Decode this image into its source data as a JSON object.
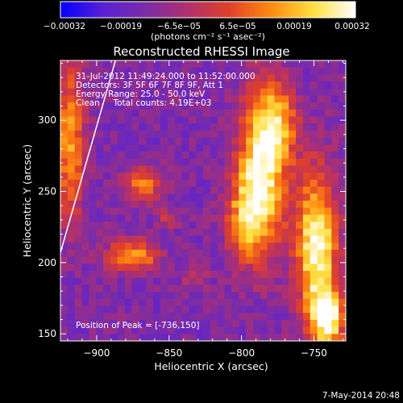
{
  "chart_data": {
    "type": "heatmap",
    "title": "Reconstructed RHESSI Image",
    "xlabel": "Heliocentric X (arcsec)",
    "ylabel": "Heliocentric Y (arcsec)",
    "xlim": [
      -925,
      -728
    ],
    "ylim": [
      145,
      342
    ],
    "x_ticks": [
      -900,
      -850,
      -800,
      -750
    ],
    "x_tick_labels": [
      "−900",
      "−850",
      "−800",
      "−750"
    ],
    "y_ticks": [
      150,
      200,
      250,
      300
    ],
    "y_tick_labels": [
      "150",
      "200",
      "250",
      "300"
    ],
    "colorbar": {
      "min": -0.00032,
      "max": 0.00032,
      "tick_labels": [
        "−0.00032",
        "−0.00019",
        "−6.5e−05",
        "6.5e−05",
        "0.00019",
        "0.00032"
      ],
      "unit_label": "(photons cm⁻² s⁻¹ asec⁻²)",
      "colors": [
        "#0000ff",
        "#5a1fd6",
        "#7a2ca8",
        "#b0306e",
        "#e0402a",
        "#ff8a10",
        "#ffe040",
        "#ffffff"
      ]
    },
    "annotations": [
      "31-Jul-2012 11:49:24.000 to 11:52:00.000",
      "Detectors: 3F 5F 6F 7F 8F 9F, Att 1",
      "Energy Range: 25.0 - 50.0 keV",
      "Clean     Total counts: 4.19E+03"
    ],
    "peak_label": "Position of Peak = [-736,150]",
    "peak_position": [
      -736,
      150
    ],
    "limb_line": [
      [
        -925,
        207
      ],
      [
        -887,
        342
      ]
    ],
    "footer": "7-May-2014 20:48",
    "sources": [
      {
        "x": -785,
        "y": 265,
        "sx": 12,
        "sy": 38,
        "amp": 0.9
      },
      {
        "x": -797,
        "y": 232,
        "sx": 10,
        "sy": 22,
        "amp": 0.55
      },
      {
        "x": -775,
        "y": 300,
        "sx": 10,
        "sy": 18,
        "amp": 0.5
      },
      {
        "x": -748,
        "y": 210,
        "sx": 10,
        "sy": 38,
        "amp": 1.0
      },
      {
        "x": -740,
        "y": 160,
        "sx": 8,
        "sy": 14,
        "amp": 0.85
      },
      {
        "x": -868,
        "y": 255,
        "sx": 9,
        "sy": 8,
        "amp": 0.55
      },
      {
        "x": -875,
        "y": 205,
        "sx": 12,
        "sy": 8,
        "amp": 0.7
      },
      {
        "x": -918,
        "y": 285,
        "sx": 7,
        "sy": 40,
        "amp": 0.65
      },
      {
        "x": -832,
        "y": 190,
        "sx": 6,
        "sy": 6,
        "amp": 0.3
      },
      {
        "x": -852,
        "y": 232,
        "sx": 6,
        "sy": 6,
        "amp": 0.25
      }
    ],
    "background_level": -0.42
  }
}
